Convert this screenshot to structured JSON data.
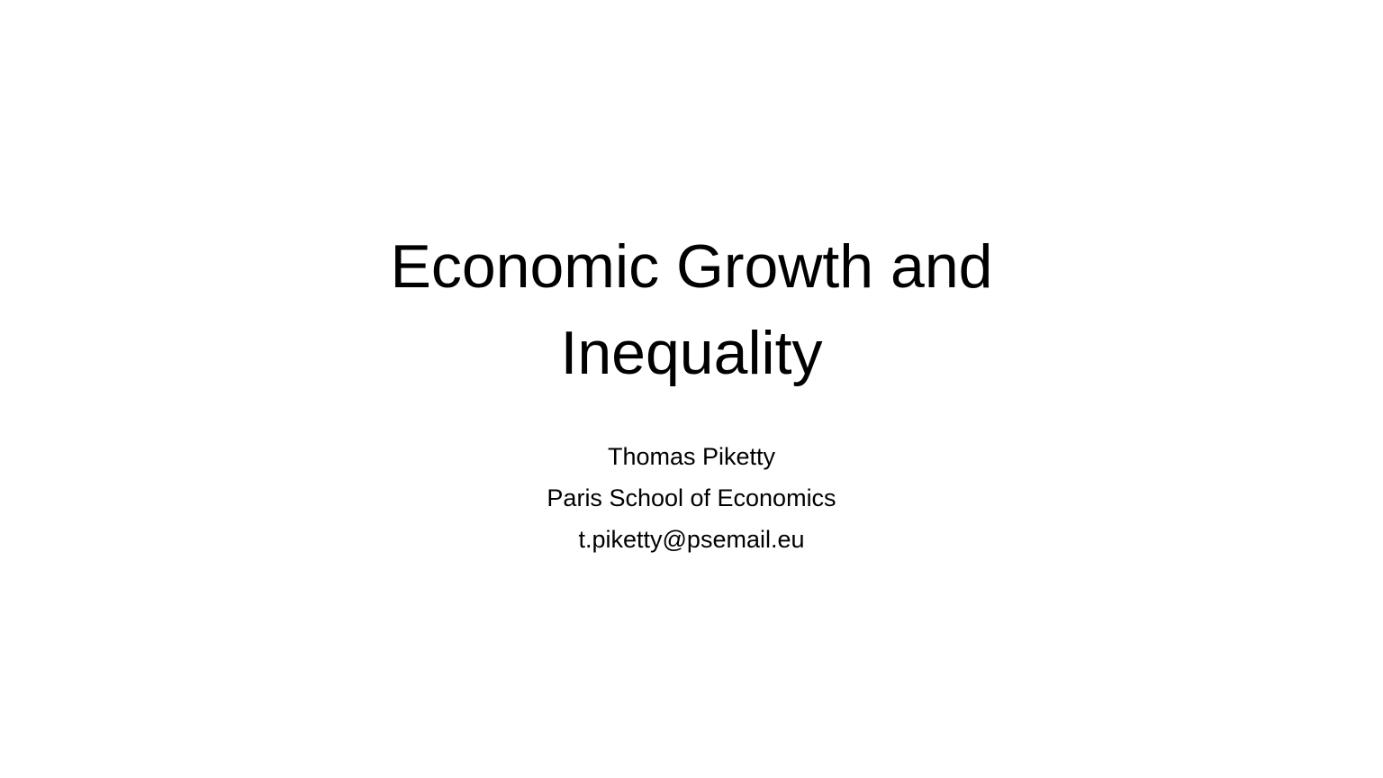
{
  "slide": {
    "title_lines": [
      "Economic Growth and",
      "Inequality"
    ],
    "subtitle_lines": [
      "Thomas Piketty",
      "Paris School of Economics",
      "t.piketty@psemail.eu"
    ]
  }
}
